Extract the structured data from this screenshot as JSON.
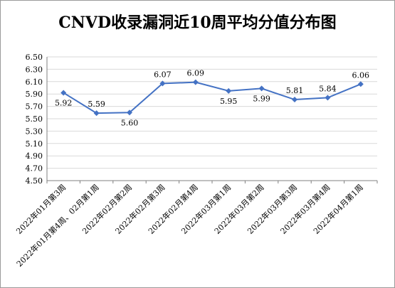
{
  "chart_data": {
    "type": "line",
    "title": "CNVD收录漏洞近10周平均分值分布图",
    "categories": [
      "2022年01月第3周",
      "2022年01月第4周、02月第1周",
      "2022年02月第2周",
      "2022年02月第3周",
      "2022年02月第4周",
      "2022年03月第1周",
      "2022年03月第2周",
      "2022年03月第3周",
      "2022年03月第4周",
      "2022年04月第1周"
    ],
    "values": [
      5.92,
      5.59,
      5.6,
      6.07,
      6.09,
      5.95,
      5.99,
      5.81,
      5.84,
      6.06
    ],
    "value_labels": [
      "5.92",
      "5.59",
      "5.60",
      "6.07",
      "6.09",
      "5.95",
      "5.99",
      "5.81",
      "5.84",
      "6.06"
    ],
    "ylim": [
      4.5,
      6.5
    ],
    "yticks": [
      "4.50",
      "4.70",
      "4.90",
      "5.10",
      "5.30",
      "5.50",
      "5.70",
      "5.90",
      "6.10",
      "6.30",
      "6.50"
    ],
    "grid": true,
    "legend": "none",
    "line_color": "#4472C4"
  }
}
